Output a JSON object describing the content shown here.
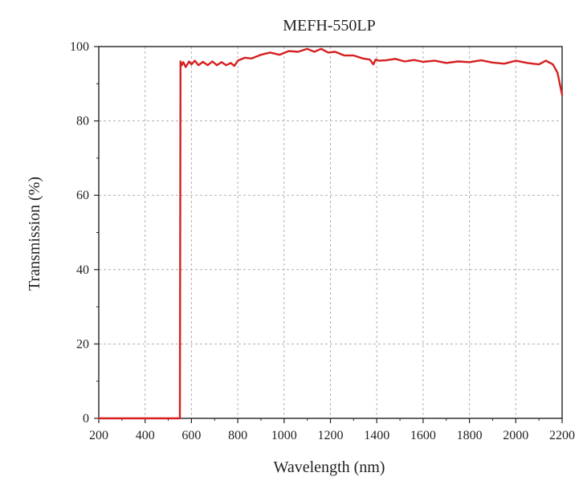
{
  "chart_data": {
    "type": "line",
    "title": "MEFH-550LP",
    "xlabel": "Wavelength (nm)",
    "ylabel": "Transmission (%)",
    "xlim": [
      200,
      2200
    ],
    "ylim": [
      0,
      100
    ],
    "x_ticks": [
      200,
      400,
      600,
      800,
      1000,
      1200,
      1400,
      1600,
      1800,
      2000,
      2200
    ],
    "y_ticks": [
      0,
      20,
      40,
      60,
      80,
      100
    ],
    "grid": true,
    "legend": "none",
    "colors": {
      "series": "#d61f1f",
      "grid": "#b0b0b0",
      "axis": "#222222"
    },
    "series": [
      {
        "x": [
          200,
          300,
          400,
          500,
          545,
          550,
          553,
          558,
          565,
          575,
          590,
          600,
          615,
          630,
          650,
          670,
          690,
          710,
          730,
          750,
          770,
          785,
          800,
          830,
          860,
          900,
          940,
          980,
          1020,
          1060,
          1100,
          1130,
          1160,
          1190,
          1220,
          1260,
          1300,
          1340,
          1370,
          1385,
          1395,
          1410,
          1440,
          1480,
          1520,
          1560,
          1600,
          1650,
          1700,
          1750,
          1800,
          1850,
          1900,
          1950,
          2000,
          2050,
          2100,
          2130,
          2160,
          2180,
          2200
        ],
        "y": [
          0,
          0,
          0,
          0,
          0,
          0,
          96,
          95,
          95.8,
          94.5,
          96,
          95.2,
          96.2,
          95,
          95.9,
          95,
          96,
          95,
          95.8,
          95,
          95.6,
          94.8,
          96.2,
          97,
          96.8,
          97.8,
          98.4,
          97.8,
          98.8,
          98.6,
          99.4,
          98.6,
          99.4,
          98.4,
          98.6,
          97.6,
          97.6,
          96.8,
          96.5,
          95.2,
          96.5,
          96.2,
          96.3,
          96.7,
          96,
          96.4,
          95.9,
          96.2,
          95.6,
          96,
          95.8,
          96.3,
          95.7,
          95.4,
          96.2,
          95.6,
          95.2,
          96.2,
          95.2,
          93,
          87
        ]
      }
    ]
  }
}
